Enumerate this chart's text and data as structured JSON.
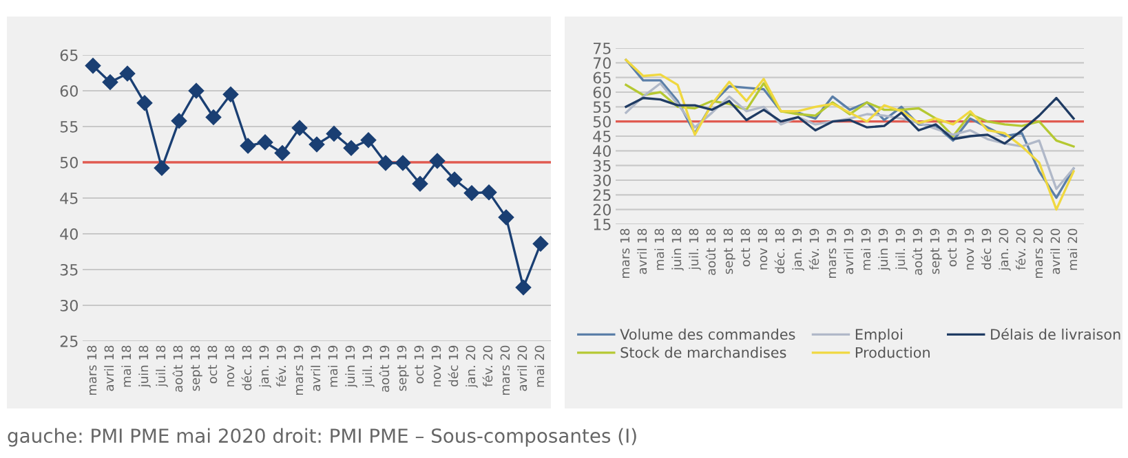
{
  "chart_data": [
    {
      "type": "line",
      "categories": [
        "mars 18",
        "avril 18",
        "mai 18",
        "juin 18",
        "juil. 18",
        "août 18",
        "sept 18",
        "oct 18",
        "nov 18",
        "déc. 18",
        "jan. 19",
        "fév. 19",
        "mars 19",
        "avril 19",
        "mai 19",
        "juin 19",
        "juil. 19",
        "août 19",
        "sept 19",
        "oct 19",
        "nov 19",
        "déc 19",
        "jan. 20",
        "fév. 20",
        "mars 20",
        "avril 20",
        "mai 20"
      ],
      "series": [
        {
          "color": "#1a3f73",
          "values": [
            63.5,
            61.2,
            62.4,
            58.3,
            49.2,
            55.8,
            60.0,
            56.3,
            59.5,
            52.3,
            52.8,
            51.3,
            54.8,
            52.5,
            54.0,
            52.0,
            53.1,
            49.9,
            49.9,
            47.0,
            50.2,
            47.6,
            45.7,
            45.8,
            42.3,
            32.5,
            38.6
          ]
        }
      ],
      "marker": "diamond",
      "ylim": [
        25,
        65
      ],
      "yticks": [
        25,
        30,
        35,
        40,
        45,
        50,
        55,
        60,
        65
      ],
      "grid": "y",
      "ref_lines": [
        {
          "axis": "y",
          "value": 50,
          "color": "#e05a50"
        }
      ],
      "annotations": [
        "gauche: PMI PME mai 2020 droit: PMI PME – Sous-composantes (I)"
      ]
    },
    {
      "type": "line",
      "categories": [
        "mars 18",
        "avril 18",
        "mai 18",
        "juin 18",
        "juil. 18",
        "août 18",
        "sept 18",
        "oct 18",
        "nov 18",
        "déc. 18",
        "jan. 19",
        "fév. 19",
        "mars 19",
        "avril 19",
        "mai 19",
        "juin 19",
        "juil. 19",
        "août 19",
        "sept 19",
        "oct 19",
        "nov 19",
        "déc 19",
        "jan. 20",
        "fév. 20",
        "mars 20",
        "avril 20",
        "mai 20"
      ],
      "series": [
        {
          "name": "Volume des commandes",
          "color": "#5b7fa8",
          "values": [
            71,
            64,
            64,
            57,
            46,
            56,
            62,
            61.5,
            61,
            53.5,
            53,
            51,
            58.5,
            54,
            56.5,
            50.5,
            55,
            49,
            48.5,
            43.5,
            51,
            48,
            45,
            46,
            33,
            24,
            34
          ]
        },
        {
          "name": "Stock de marchandises",
          "color": "#b5c832",
          "values": [
            62.5,
            59,
            60,
            55,
            54.5,
            57,
            56,
            54,
            63,
            53.5,
            52.5,
            52,
            56.5,
            52.5,
            56.5,
            54,
            54,
            54.5,
            51,
            45,
            52.5,
            50,
            49,
            48.5,
            50,
            43.5,
            41.5
          ]
        },
        {
          "name": "Emploi",
          "color": "#b0b8c8",
          "values": [
            53,
            58.5,
            63,
            56,
            48,
            53,
            58.5,
            53.5,
            55,
            49,
            51.5,
            49,
            50,
            51,
            52.5,
            52,
            51,
            49.5,
            47.5,
            45.5,
            47,
            44,
            42.5,
            41.5,
            43.5,
            27,
            34
          ]
        },
        {
          "name": "Production",
          "color": "#f0d840",
          "values": [
            71,
            65.5,
            66,
            62.5,
            45.5,
            56,
            63.5,
            57,
            64.5,
            53.5,
            53.5,
            55,
            56,
            53,
            50,
            55.5,
            53.5,
            49.5,
            51,
            49,
            53.5,
            47,
            46,
            41.5,
            36,
            20,
            33
          ]
        },
        {
          "name": "Délais de livraison",
          "color": "#1f3b63",
          "values": [
            55,
            58,
            57.5,
            55.5,
            55.5,
            54,
            57,
            50.5,
            54,
            50,
            51.5,
            47,
            50,
            50.5,
            48,
            48.5,
            53,
            47,
            49,
            44,
            45,
            45.5,
            42.5,
            47,
            52,
            58,
            51
          ]
        }
      ],
      "marker": "none",
      "ylim": [
        15,
        75
      ],
      "yticks": [
        15,
        20,
        25,
        30,
        35,
        40,
        45,
        50,
        55,
        60,
        65,
        70,
        75
      ],
      "grid": "y",
      "legend": "bottom",
      "ref_lines": [
        {
          "axis": "y",
          "value": 50,
          "color": "#e05a50"
        }
      ]
    }
  ]
}
